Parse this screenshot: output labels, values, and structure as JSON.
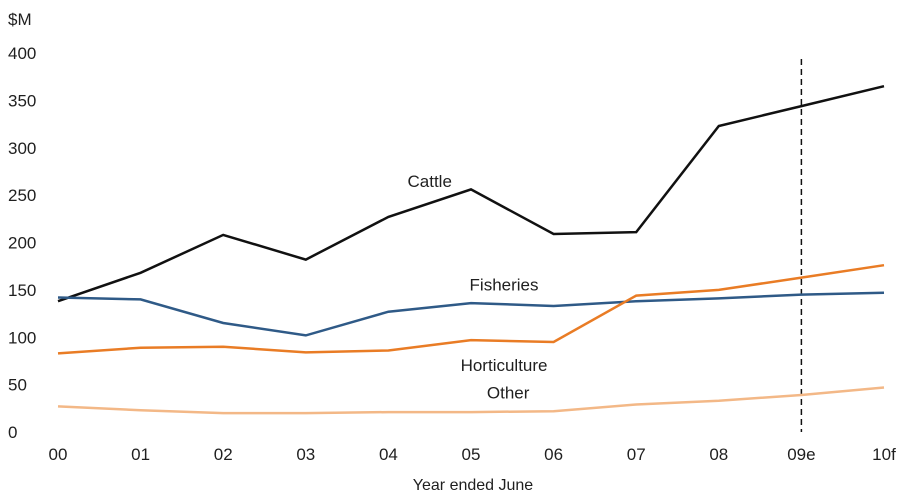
{
  "chart_data": {
    "type": "line",
    "unit_label": "$M",
    "xlabel": "Year ended June",
    "ylabel": "",
    "categories": [
      "00",
      "01",
      "02",
      "03",
      "04",
      "05",
      "06",
      "07",
      "08",
      "09e",
      "10f"
    ],
    "ylim": [
      0,
      400
    ],
    "yticks": [
      "0",
      "50",
      "100",
      "150",
      "200",
      "250",
      "300",
      "350",
      "400"
    ],
    "grid": false,
    "legend": "inline labels",
    "forecast_divider_category": "09e",
    "series": [
      {
        "name": "Cattle",
        "color": "#111111",
        "values": [
          138,
          168,
          208,
          182,
          227,
          256,
          209,
          211,
          323,
          344,
          365
        ]
      },
      {
        "name": "Fisheries",
        "color": "#2f5a87",
        "values": [
          142,
          140,
          115,
          102,
          127,
          136,
          133,
          138,
          141,
          145,
          147
        ]
      },
      {
        "name": "Horticulture",
        "color": "#e97c25",
        "values": [
          83,
          89,
          90,
          84,
          86,
          97,
          95,
          144,
          150,
          163,
          176
        ]
      },
      {
        "name": "Other",
        "color": "#f3b887",
        "values": [
          27,
          23,
          20,
          20,
          21,
          21,
          22,
          29,
          33,
          39,
          47
        ]
      }
    ]
  }
}
